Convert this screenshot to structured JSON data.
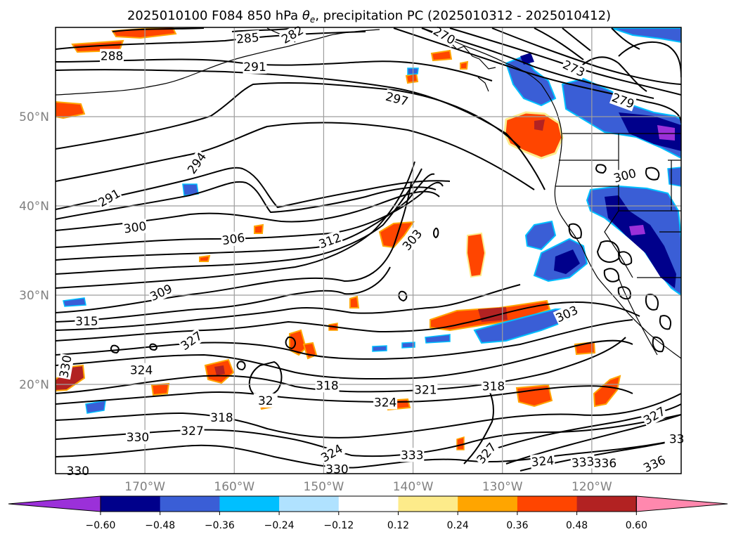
{
  "title": "2025010100 F084 850 hPa θe, precipitation PC (2025010312 - 2025010412)",
  "title_parts": {
    "prefix": "2025010100 F084 850 hPa ",
    "theta": "θ",
    "sub": "e",
    "suffix": ", precipitation PC (2025010312 - 2025010412)"
  },
  "map": {
    "lon_range": [
      -180,
      -110
    ],
    "lat_range": [
      10,
      60
    ],
    "lon_ticks": [
      {
        "lon": -170,
        "label": "170°W"
      },
      {
        "lon": -160,
        "label": "160°W"
      },
      {
        "lon": -150,
        "label": "150°W"
      },
      {
        "lon": -140,
        "label": "140°W"
      },
      {
        "lon": -130,
        "label": "130°W"
      },
      {
        "lon": -120,
        "label": "120°W"
      }
    ],
    "lat_ticks": [
      {
        "lat": 50,
        "label": "50°N"
      },
      {
        "lat": 40,
        "label": "40°N"
      },
      {
        "lat": 30,
        "label": "30°N"
      },
      {
        "lat": 20,
        "label": "20°N"
      }
    ],
    "gridlines": true
  },
  "contour_labels": [
    {
      "text": "288",
      "lon": -173.7,
      "lat": 56.8,
      "rot": 0
    },
    {
      "text": "291",
      "lon": -157.7,
      "lat": 55.6,
      "rot": 0
    },
    {
      "text": "285",
      "lon": -158.5,
      "lat": 58.8,
      "rot": -5
    },
    {
      "text": "282",
      "lon": -153.5,
      "lat": 59.2,
      "rot": -30
    },
    {
      "text": "270",
      "lon": -136.5,
      "lat": 59.1,
      "rot": 30
    },
    {
      "text": "273",
      "lon": -122.0,
      "lat": 55.4,
      "rot": 25
    },
    {
      "text": "279",
      "lon": -116.5,
      "lat": 51.8,
      "rot": 20
    },
    {
      "text": "297",
      "lon": -141.8,
      "lat": 52.0,
      "rot": 15
    },
    {
      "text": "294",
      "lon": -164.2,
      "lat": 44.8,
      "rot": -55
    },
    {
      "text": "291",
      "lon": -174.0,
      "lat": 40.9,
      "rot": -30
    },
    {
      "text": "300",
      "lon": -116.3,
      "lat": 43.4,
      "rot": -15
    },
    {
      "text": "300",
      "lon": -171.1,
      "lat": 37.6,
      "rot": -8
    },
    {
      "text": "306",
      "lon": -160.1,
      "lat": 36.3,
      "rot": -8
    },
    {
      "text": "312",
      "lon": -149.3,
      "lat": 36.1,
      "rot": -20
    },
    {
      "text": "303",
      "lon": -140.1,
      "lat": 36.2,
      "rot": -50
    },
    {
      "text": "309",
      "lon": -168.2,
      "lat": 30.3,
      "rot": -25
    },
    {
      "text": "315",
      "lon": -176.5,
      "lat": 27.1,
      "rot": 0
    },
    {
      "text": "303",
      "lon": -122.8,
      "lat": 27.9,
      "rot": -25
    },
    {
      "text": "327",
      "lon": -164.8,
      "lat": 24.9,
      "rot": -35
    },
    {
      "text": "330",
      "lon": -178.9,
      "lat": 22.0,
      "rot": -80
    },
    {
      "text": "324",
      "lon": -170.4,
      "lat": 21.6,
      "rot": 0
    },
    {
      "text": "318",
      "lon": -149.6,
      "lat": 19.9,
      "rot": 0
    },
    {
      "text": "321",
      "lon": -138.6,
      "lat": 19.4,
      "rot": 0
    },
    {
      "text": "318",
      "lon": -131.0,
      "lat": 19.8,
      "rot": 0
    },
    {
      "text": "324",
      "lon": -143.1,
      "lat": 18.0,
      "rot": 0
    },
    {
      "text": "32",
      "lon": -156.5,
      "lat": 18.2,
      "rot": 0
    },
    {
      "text": "318",
      "lon": -161.4,
      "lat": 16.3,
      "rot": 0
    },
    {
      "text": "327",
      "lon": -164.7,
      "lat": 14.8,
      "rot": 0
    },
    {
      "text": "330",
      "lon": -170.8,
      "lat": 14.1,
      "rot": 0
    },
    {
      "text": "324",
      "lon": -149.1,
      "lat": 12.3,
      "rot": -30
    },
    {
      "text": "333",
      "lon": -140.1,
      "lat": 12.1,
      "rot": 0
    },
    {
      "text": "327",
      "lon": -131.8,
      "lat": 12.3,
      "rot": -50
    },
    {
      "text": "330",
      "lon": -148.5,
      "lat": 10.5,
      "rot": 0
    },
    {
      "text": "330",
      "lon": -177.5,
      "lat": 10.3,
      "rot": 0
    },
    {
      "text": "324",
      "lon": -125.5,
      "lat": 11.4,
      "rot": -5
    },
    {
      "text": "333",
      "lon": -121.0,
      "lat": 11.3,
      "rot": -5
    },
    {
      "text": "336",
      "lon": -118.5,
      "lat": 11.2,
      "rot": 0
    },
    {
      "text": "336",
      "lon": -113.0,
      "lat": 11.1,
      "rot": -25
    },
    {
      "text": "327",
      "lon": -113.0,
      "lat": 16.5,
      "rot": -30
    },
    {
      "text": "33",
      "lon": -110.5,
      "lat": 13.9,
      "rot": 0
    }
  ],
  "colorbar": {
    "extend": "both",
    "colors": [
      "#9b30d9",
      "#00008b",
      "#3a5ed6",
      "#00bfff",
      "#b0e2ff",
      "#ffffff",
      "#fdeb8a",
      "#ffa500",
      "#ff4500",
      "#b22222",
      "#ff88ae"
    ],
    "tick_labels": [
      "−0.60",
      "−0.48",
      "−0.36",
      "−0.24",
      "−0.12",
      "0.12",
      "0.24",
      "0.36",
      "0.48",
      "0.60"
    ]
  }
}
